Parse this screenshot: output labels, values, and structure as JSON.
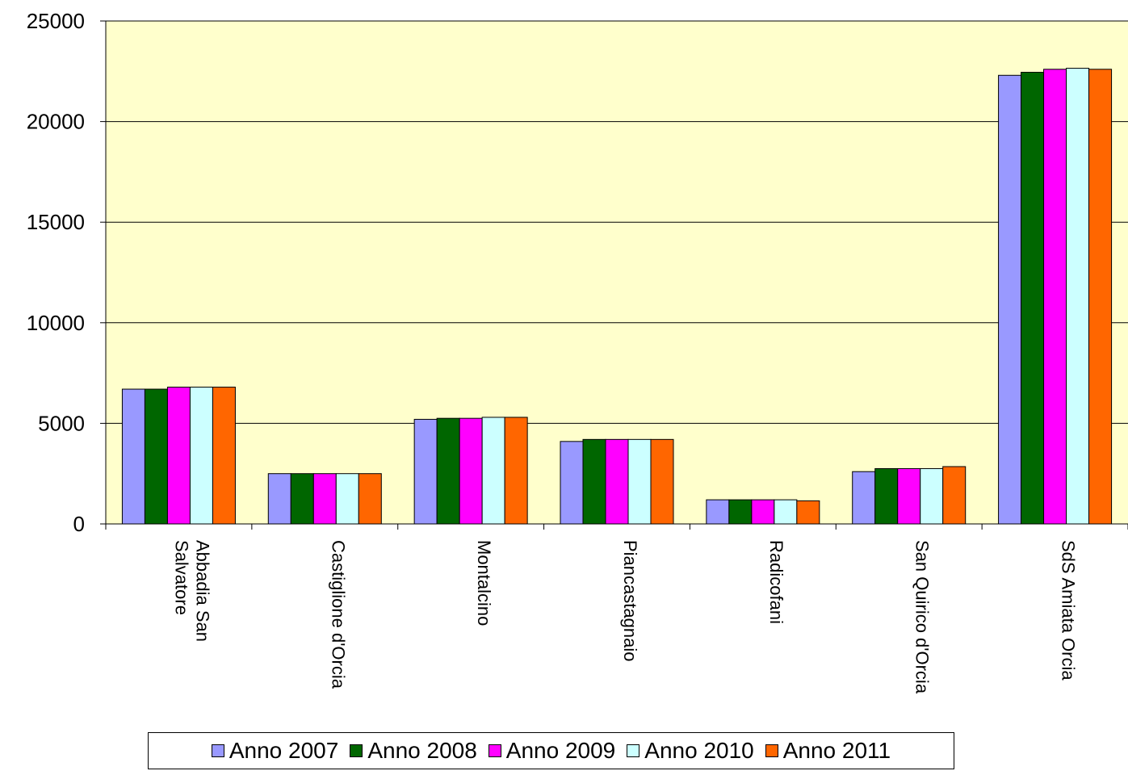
{
  "chart_data": {
    "type": "bar",
    "title": "",
    "xlabel": "",
    "ylabel": "",
    "ylim": [
      0,
      25000
    ],
    "yticks": [
      "0",
      "5000",
      "10000",
      "15000",
      "20000",
      "25000"
    ],
    "grid": true,
    "legend_position": "bottom",
    "plot_background": "#FFFFCC",
    "categories": [
      "Abbadia San Salvatore",
      "Castiglione d'Orcia",
      "Montalcino",
      "Piancastagnaio",
      "Radicofani",
      "San Quirico d'Orcia",
      "SdS Amiata Orcia"
    ],
    "series": [
      {
        "name": "Anno 2007",
        "color": "#9999FF",
        "values": [
          6700,
          2500,
          5200,
          4100,
          1200,
          2600,
          22300
        ]
      },
      {
        "name": "Anno 2008",
        "color": "#006600",
        "values": [
          6700,
          2500,
          5250,
          4200,
          1200,
          2750,
          22450
        ]
      },
      {
        "name": "Anno 2009",
        "color": "#FF00FF",
        "values": [
          6800,
          2500,
          5250,
          4200,
          1200,
          2750,
          22600
        ]
      },
      {
        "name": "Anno 2010",
        "color": "#CCFFFF",
        "values": [
          6800,
          2500,
          5300,
          4200,
          1200,
          2750,
          22650
        ]
      },
      {
        "name": "Anno 2011",
        "color": "#FF6600",
        "values": [
          6800,
          2500,
          5300,
          4200,
          1150,
          2850,
          22600
        ]
      }
    ]
  }
}
